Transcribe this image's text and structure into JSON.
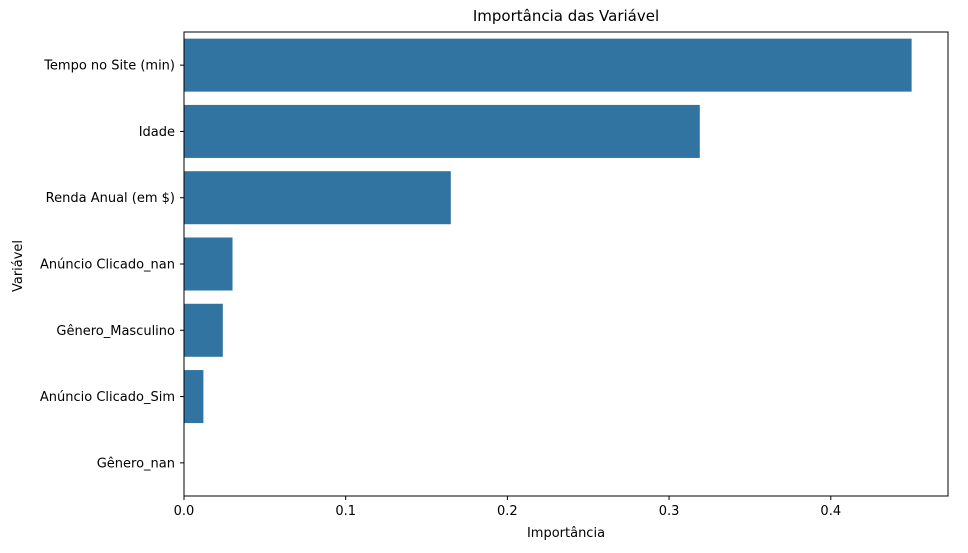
{
  "chart_data": {
    "type": "bar",
    "orientation": "horizontal",
    "title": "Importância das Variável",
    "xlabel": "Importância",
    "ylabel": "Variável",
    "categories": [
      "Tempo no Site (min)",
      "Idade",
      "Renda Anual (em $)",
      "Anúncio Clicado_nan",
      "Gênero_Masculino",
      "Anúncio Clicado_Sim",
      "Gênero_nan"
    ],
    "values": [
      0.45,
      0.319,
      0.165,
      0.03,
      0.024,
      0.012,
      0.0
    ],
    "xlim": [
      0,
      0.4725
    ],
    "xticks": [
      0.0,
      0.1,
      0.2,
      0.3,
      0.4
    ],
    "xtick_labels": [
      "0.0",
      "0.1",
      "0.2",
      "0.3",
      "0.4"
    ],
    "grid": false,
    "bar_color": "#3274a1"
  }
}
